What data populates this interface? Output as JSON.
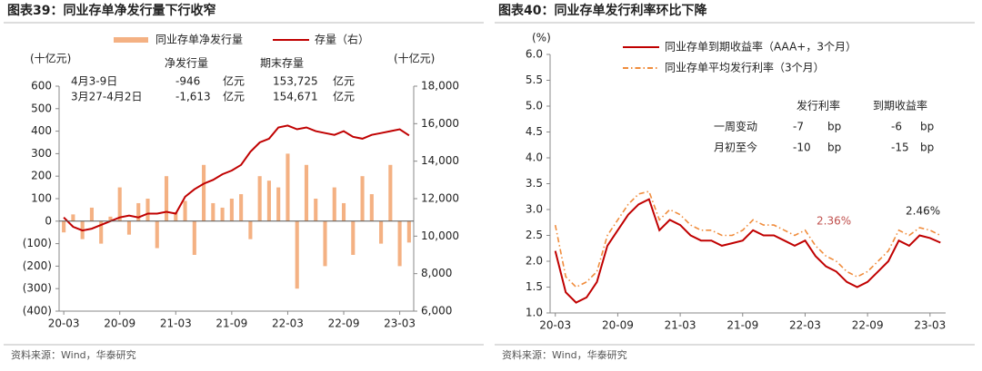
{
  "chart_data": [
    {
      "type": "bar",
      "title": "图表39：同业存单净发行量下行收窄",
      "unit_label": "(十亿元)",
      "y2_unit_label": "(十亿元)",
      "categories": [
        "20-03",
        null,
        null,
        null,
        null,
        null,
        "20-09",
        null,
        null,
        null,
        null,
        null,
        "21-03",
        null,
        null,
        null,
        null,
        null,
        "21-09",
        null,
        null,
        null,
        null,
        null,
        "22-03",
        null,
        null,
        null,
        null,
        null,
        "22-09",
        null,
        null,
        null,
        null,
        null,
        "23-03",
        null
      ],
      "series": [
        {
          "name": "同业存单净发行量",
          "type": "bar",
          "color": "#f4b183",
          "values": [
            -50,
            30,
            -80,
            60,
            -100,
            20,
            150,
            -60,
            80,
            100,
            -120,
            200,
            40,
            90,
            -150,
            250,
            80,
            60,
            100,
            120,
            -80,
            200,
            180,
            150,
            300,
            -300,
            250,
            100,
            -200,
            150,
            80,
            -150,
            200,
            120,
            -100,
            250,
            -200,
            -95
          ]
        },
        {
          "name": "存量（右）",
          "type": "line",
          "color": "#c00000",
          "axis": "y2",
          "values": [
            11000,
            10500,
            10300,
            10400,
            10600,
            10800,
            11000,
            11100,
            11000,
            11200,
            11200,
            11300,
            11200,
            12100,
            12500,
            12800,
            13000,
            13300,
            13500,
            13800,
            14500,
            15000,
            15200,
            15800,
            15900,
            15700,
            15800,
            15600,
            15500,
            15400,
            15600,
            15300,
            15200,
            15400,
            15500,
            15600,
            15700,
            15373
          ]
        }
      ],
      "ylim": [
        -400,
        600
      ],
      "yticks": [
        {
          "value": -400,
          "label": "(400)"
        },
        {
          "value": -300,
          "label": "(300)"
        },
        {
          "value": -200,
          "label": "(200)"
        },
        {
          "value": -100,
          "label": "(100)"
        },
        0,
        100,
        200,
        300,
        400,
        500,
        600
      ],
      "y2lim": [
        6000,
        18000
      ],
      "y2ticks": [
        {
          "value": 6000,
          "label": "6,000"
        },
        {
          "value": 8000,
          "label": "8,000"
        },
        {
          "value": 10000,
          "label": "10,000"
        },
        {
          "value": 12000,
          "label": "12,000"
        },
        {
          "value": 14000,
          "label": "14,000"
        },
        {
          "value": 16000,
          "label": "16,000"
        },
        {
          "value": 18000,
          "label": "18,000"
        }
      ],
      "table": {
        "header": [
          "净发行量",
          "期末存量"
        ],
        "rows": [
          [
            "4月3-9日",
            "-946",
            "亿元",
            "153,725",
            "亿元"
          ],
          [
            "3月27-4月2日",
            "-1,613",
            "亿元",
            "154,671",
            "亿元"
          ]
        ]
      },
      "source": "资料来源：Wind，华泰研究"
    },
    {
      "type": "line",
      "title": "图表40：同业存单发行利率环比下降",
      "unit_label": "(%)",
      "categories": [
        "20-03",
        null,
        null,
        null,
        null,
        null,
        "20-09",
        null,
        null,
        null,
        null,
        null,
        "21-03",
        null,
        null,
        null,
        null,
        null,
        "21-09",
        null,
        null,
        null,
        null,
        null,
        "22-03",
        null,
        null,
        null,
        null,
        null,
        "22-09",
        null,
        null,
        null,
        null,
        null,
        "23-03",
        null
      ],
      "series": [
        {
          "name": "同业存单到期收益率（AAA+，3个月）",
          "color": "#c00000",
          "style": "solid",
          "values": [
            2.2,
            1.4,
            1.2,
            1.3,
            1.6,
            2.3,
            2.6,
            2.9,
            3.1,
            3.2,
            2.6,
            2.8,
            2.7,
            2.5,
            2.4,
            2.4,
            2.3,
            2.35,
            2.4,
            2.6,
            2.5,
            2.5,
            2.4,
            2.3,
            2.4,
            2.1,
            1.9,
            1.8,
            1.6,
            1.5,
            1.6,
            1.8,
            2.0,
            2.4,
            2.3,
            2.5,
            2.45,
            2.36
          ]
        },
        {
          "name": "同业存单平均发行利率（3个月）",
          "color": "#f08c3c",
          "style": "dashdot",
          "values": [
            2.7,
            1.7,
            1.5,
            1.6,
            1.8,
            2.5,
            2.8,
            3.1,
            3.3,
            3.35,
            2.8,
            3.0,
            2.9,
            2.7,
            2.6,
            2.6,
            2.5,
            2.5,
            2.6,
            2.8,
            2.7,
            2.7,
            2.6,
            2.5,
            2.6,
            2.3,
            2.1,
            2.0,
            1.8,
            1.7,
            1.8,
            2.0,
            2.2,
            2.6,
            2.5,
            2.65,
            2.6,
            2.5
          ]
        }
      ],
      "ylim": [
        1,
        6
      ],
      "yticks": [
        {
          "value": 1,
          "label": "1.0"
        },
        1.5,
        {
          "value": 2,
          "label": "2.0"
        },
        2.5,
        {
          "value": 3,
          "label": "3.0"
        },
        3.5,
        {
          "value": 4,
          "label": "4.0"
        },
        4.5,
        {
          "value": 5,
          "label": "5.0"
        },
        5.5,
        {
          "value": 6,
          "label": "6.0"
        }
      ],
      "annotations": [
        {
          "text": "2.36%",
          "color": "#c0504d"
        },
        {
          "text": "2.46%",
          "color": "#222222"
        }
      ],
      "table": {
        "header": [
          "发行利率",
          "到期收益率"
        ],
        "rows": [
          [
            "一周变动",
            "-7",
            "bp",
            "-6",
            "bp"
          ],
          [
            "月初至今",
            "-10",
            "bp",
            "-15",
            "bp"
          ]
        ]
      },
      "source": "资料来源：Wind，华泰研究"
    }
  ]
}
